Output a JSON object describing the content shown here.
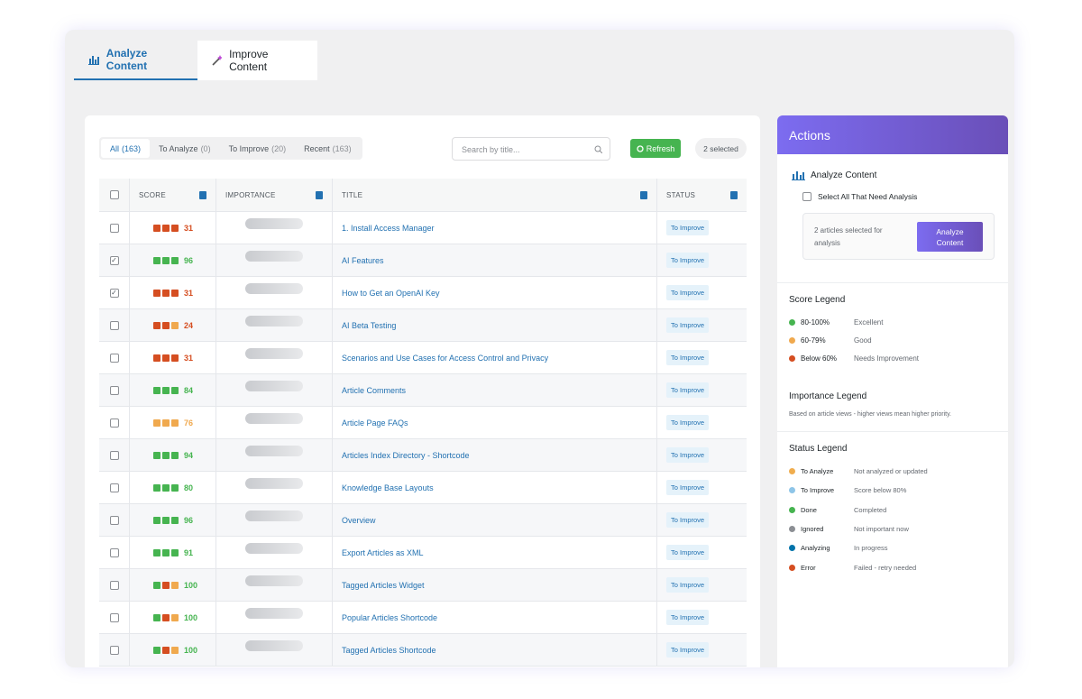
{
  "tabs": [
    "Analyze Content",
    "Improve Content"
  ],
  "filters": [
    {
      "label": "All",
      "count": "(163)"
    },
    {
      "label": "To Analyze",
      "count": "(0)"
    },
    {
      "label": "To Improve",
      "count": "(20)"
    },
    {
      "label": "Recent",
      "count": "(163)"
    }
  ],
  "search_placeholder": "Search by title...",
  "refresh": "Refresh",
  "selected": "2 selected",
  "table": {
    "headers": [
      "SCORE",
      "IMPORTANCE",
      "TITLE",
      "STATUS"
    ],
    "rows": [
      {
        "checked": false,
        "score": 31,
        "color": "#d54e21",
        "squares": [
          "#d54e21",
          "#d54e21",
          "#d54e21"
        ],
        "title": "1. Install Access Manager",
        "status": "To Improve"
      },
      {
        "checked": true,
        "score": 96,
        "color": "#46b450",
        "squares": [
          "#46b450",
          "#46b450",
          "#46b450"
        ],
        "title": "AI Features",
        "status": "To Improve"
      },
      {
        "checked": true,
        "score": 31,
        "color": "#d54e21",
        "squares": [
          "#d54e21",
          "#d54e21",
          "#d54e21"
        ],
        "title": "How to Get an OpenAI Key",
        "status": "To Improve"
      },
      {
        "checked": false,
        "score": 24,
        "color": "#d54e21",
        "squares": [
          "#d54e21",
          "#d54e21",
          "#f0a94e"
        ],
        "title": "AI Beta Testing",
        "status": "To Improve"
      },
      {
        "checked": false,
        "score": 31,
        "color": "#d54e21",
        "squares": [
          "#d54e21",
          "#d54e21",
          "#d54e21"
        ],
        "title": "Scenarios and Use Cases for Access Control and Privacy",
        "status": "To Improve"
      },
      {
        "checked": false,
        "score": 84,
        "color": "#46b450",
        "squares": [
          "#46b450",
          "#46b450",
          "#46b450"
        ],
        "title": "Article Comments",
        "status": "To Improve"
      },
      {
        "checked": false,
        "score": 76,
        "color": "#f0a94e",
        "squares": [
          "#f0a94e",
          "#f0a94e",
          "#f0a94e"
        ],
        "title": "Article Page FAQs",
        "status": "To Improve"
      },
      {
        "checked": false,
        "score": 94,
        "color": "#46b450",
        "squares": [
          "#46b450",
          "#46b450",
          "#46b450"
        ],
        "title": "Articles Index Directory - Shortcode",
        "status": "To Improve"
      },
      {
        "checked": false,
        "score": 80,
        "color": "#46b450",
        "squares": [
          "#46b450",
          "#46b450",
          "#46b450"
        ],
        "title": "Knowledge Base Layouts",
        "status": "To Improve"
      },
      {
        "checked": false,
        "score": 96,
        "color": "#46b450",
        "squares": [
          "#46b450",
          "#46b450",
          "#46b450"
        ],
        "title": "Overview",
        "status": "To Improve"
      },
      {
        "checked": false,
        "score": 91,
        "color": "#46b450",
        "squares": [
          "#46b450",
          "#46b450",
          "#46b450"
        ],
        "title": "Export Articles as XML",
        "status": "To Improve"
      },
      {
        "checked": false,
        "score": 100,
        "color": "#46b450",
        "squares": [
          "#46b450",
          "#d54e21",
          "#f0a94e"
        ],
        "title": "Tagged Articles Widget",
        "status": "To Improve"
      },
      {
        "checked": false,
        "score": 100,
        "color": "#46b450",
        "squares": [
          "#46b450",
          "#d54e21",
          "#f0a94e"
        ],
        "title": "Popular Articles Shortcode",
        "status": "To Improve"
      },
      {
        "checked": false,
        "score": 100,
        "color": "#46b450",
        "squares": [
          "#46b450",
          "#d54e21",
          "#f0a94e"
        ],
        "title": "Tagged Articles Shortcode",
        "status": "To Improve"
      }
    ]
  },
  "actions": {
    "title": "Actions",
    "analyze_heading": "Analyze Content",
    "select_all": "Select All That Need Analysis",
    "selected_note": "2 articles selected for analysis",
    "analyze_button": "Analyze Content",
    "score_legend": {
      "title": "Score Legend",
      "items": [
        {
          "range": "80-100%",
          "label": "Excellent",
          "color": "#46b450"
        },
        {
          "range": "60-79%",
          "label": "Good",
          "color": "#f0a94e"
        },
        {
          "range": "Below 60%",
          "label": "Needs Improvement",
          "color": "#d54e21"
        }
      ]
    },
    "importance_legend": {
      "title": "Importance Legend",
      "text": "Based on article views - higher views mean higher priority."
    },
    "status_legend": {
      "title": "Status Legend",
      "items": [
        {
          "label": "To Analyze",
          "text": "Not analyzed or updated",
          "color": "#f0ad4e"
        },
        {
          "label": "To Improve",
          "text": "Score below 80%",
          "color": "#8ec5e8"
        },
        {
          "label": "Done",
          "text": "Completed",
          "color": "#46b450"
        },
        {
          "label": "Ignored",
          "text": "Not important now",
          "color": "#8c8f94"
        },
        {
          "label": "Analyzing",
          "text": "In progress",
          "color": "#0073aa"
        },
        {
          "label": "Error",
          "text": "Failed - retry needed",
          "color": "#d54e21"
        }
      ]
    }
  }
}
